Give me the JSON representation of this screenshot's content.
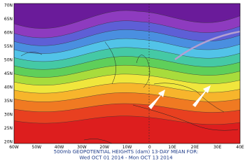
{
  "map": {
    "lat_labels": [
      "70N",
      "65N",
      "60N",
      "55N",
      "50N",
      "45N",
      "40N",
      "35N",
      "30N",
      "25N",
      "20N"
    ],
    "lon_labels": [
      "60W",
      "50W",
      "40W",
      "30W",
      "20W",
      "10W",
      "0",
      "10E",
      "20E",
      "30E",
      "40E"
    ],
    "caption": [
      "500mb GEOPOTENTIAL HEIGHTS (dam)   13-DAY MEAN FOR:",
      "Wed OCT 01 2014 - Mon OCT 13 2014"
    ]
  }
}
